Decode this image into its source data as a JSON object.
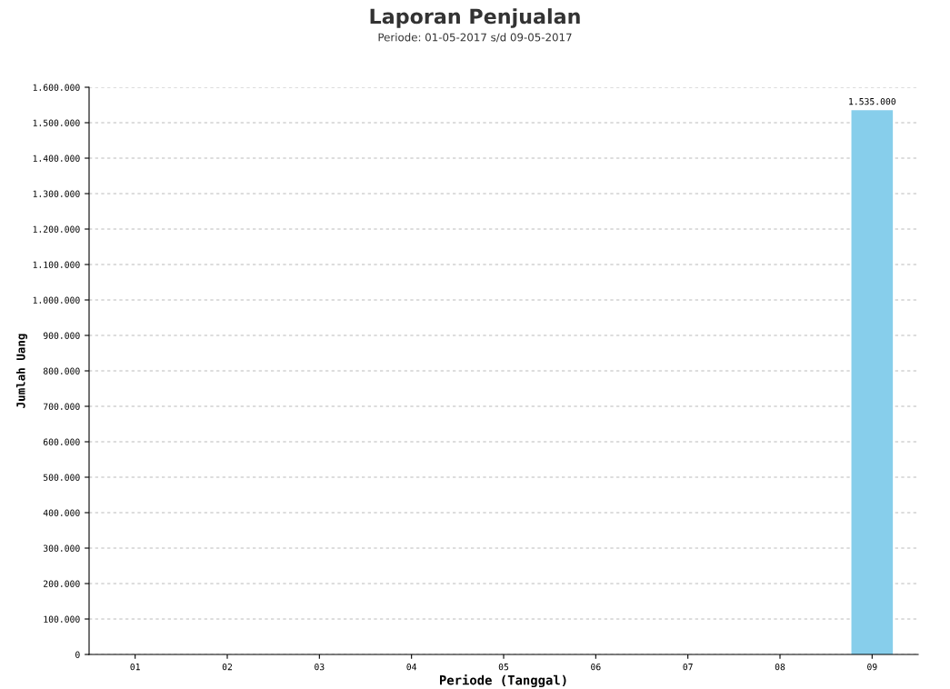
{
  "chart_data": {
    "type": "bar",
    "title": "Laporan Penjualan",
    "subtitle": "Periode: 01-05-2017 s/d 09-05-2017",
    "xlabel": "Periode (Tanggal)",
    "ylabel": "Jumlah Uang",
    "categories": [
      "01",
      "02",
      "03",
      "04",
      "05",
      "06",
      "07",
      "08",
      "09"
    ],
    "values": [
      0,
      0,
      0,
      0,
      0,
      0,
      0,
      0,
      1535000
    ],
    "value_labels": [
      null,
      null,
      null,
      null,
      null,
      null,
      null,
      null,
      "1.535.000"
    ],
    "color": "#87ceeb",
    "ylim": [
      0,
      1600000
    ],
    "yticks": [
      0,
      {
        "value": 100000,
        "label": "100.000"
      },
      {
        "value": 200000,
        "label": "200.000"
      },
      {
        "value": 300000,
        "label": "300.000"
      },
      {
        "value": 400000,
        "label": "400.000"
      },
      {
        "value": 500000,
        "label": "500.000"
      },
      {
        "value": 600000,
        "label": "600.000"
      },
      {
        "value": 700000,
        "label": "700.000"
      },
      {
        "value": 800000,
        "label": "800.000"
      },
      {
        "value": 900000,
        "label": "900.000"
      },
      {
        "value": 1000000,
        "label": "1.000.000"
      },
      {
        "value": 1100000,
        "label": "1.100.000"
      },
      {
        "value": 1200000,
        "label": "1.200.000"
      },
      {
        "value": 1300000,
        "label": "1.300.000"
      },
      {
        "value": 1400000,
        "label": "1.400.000"
      },
      {
        "value": 1500000,
        "label": "1.500.000"
      },
      {
        "value": 1600000,
        "label": "1.600.000"
      }
    ],
    "grid": "y",
    "line_style": "dashed",
    "legend": false
  }
}
